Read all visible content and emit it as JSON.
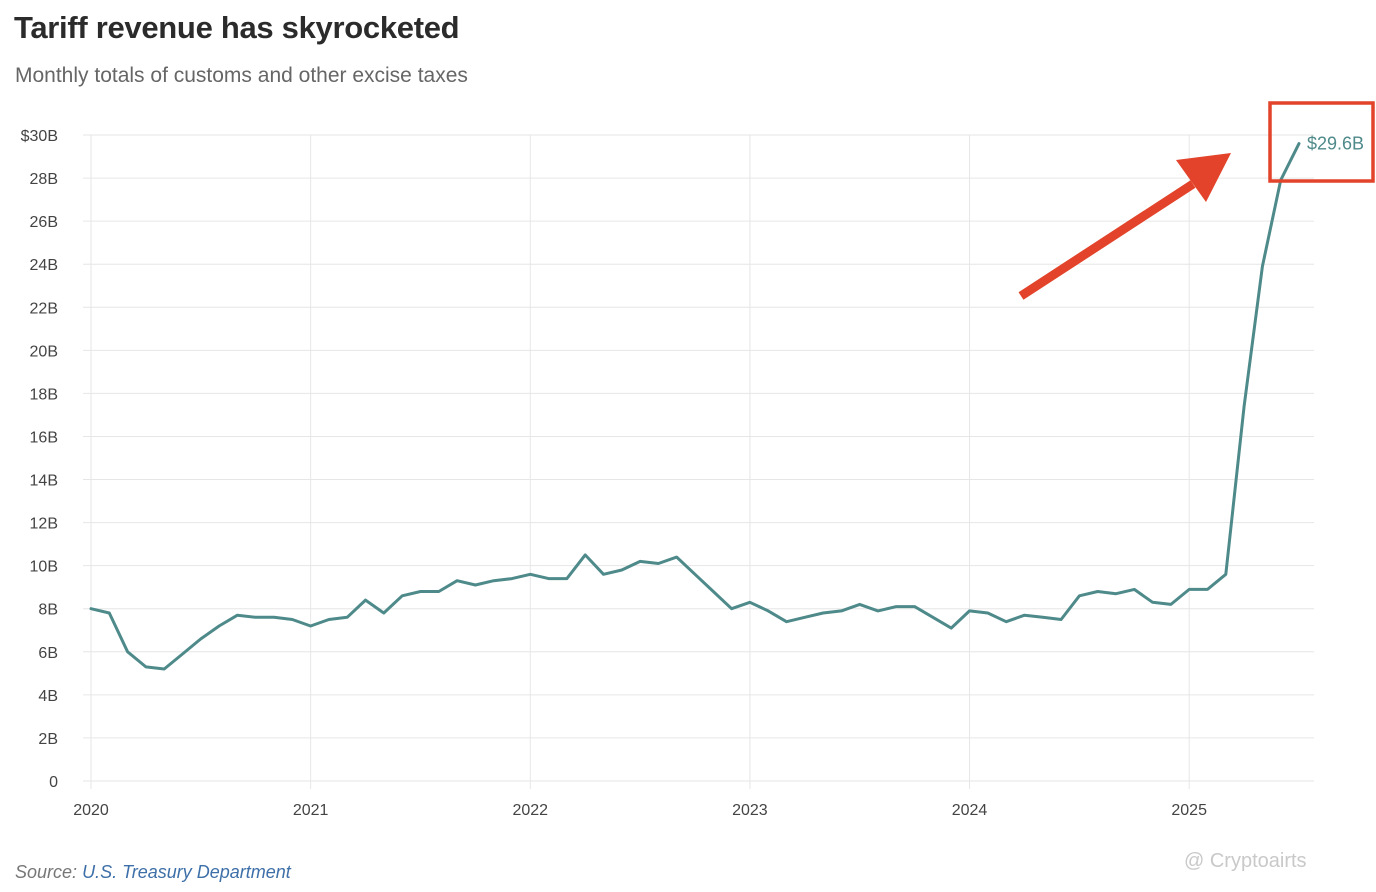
{
  "chart_data": {
    "type": "line",
    "title": "Tariff revenue has skyrocketed",
    "subtitle": "Monthly totals of customs and other excise taxes",
    "ylim": [
      0,
      30
    ],
    "ytick_labels": [
      "0",
      "2B",
      "4B",
      "6B",
      "8B",
      "10B",
      "12B",
      "14B",
      "16B",
      "18B",
      "20B",
      "22B",
      "24B",
      "26B",
      "28B",
      "$30B"
    ],
    "xlim": [
      "2020-01",
      "2025-07"
    ],
    "xtick_labels": [
      "2020",
      "2021",
      "2022",
      "2023",
      "2024",
      "2025"
    ],
    "grid": true,
    "colors": {
      "line": "#4f8a8b",
      "highlight": "#e2432a",
      "grid": "#e6e6e6"
    },
    "series": [
      {
        "x": [
          "2020-01",
          "2020-02",
          "2020-03",
          "2020-04",
          "2020-05",
          "2020-06",
          "2020-07",
          "2020-08",
          "2020-09",
          "2020-10",
          "2020-11",
          "2020-12",
          "2021-01",
          "2021-02",
          "2021-03",
          "2021-04",
          "2021-05",
          "2021-06",
          "2021-07",
          "2021-08",
          "2021-09",
          "2021-10",
          "2021-11",
          "2021-12",
          "2022-01",
          "2022-02",
          "2022-03",
          "2022-04",
          "2022-05",
          "2022-06",
          "2022-07",
          "2022-08",
          "2022-09",
          "2022-10",
          "2022-11",
          "2022-12",
          "2023-01",
          "2023-02",
          "2023-03",
          "2023-04",
          "2023-05",
          "2023-06",
          "2023-07",
          "2023-08",
          "2023-09",
          "2023-10",
          "2023-11",
          "2023-12",
          "2024-01",
          "2024-02",
          "2024-03",
          "2024-04",
          "2024-05",
          "2024-06",
          "2024-07",
          "2024-08",
          "2024-09",
          "2024-10",
          "2024-11",
          "2024-12",
          "2025-01",
          "2025-02",
          "2025-03",
          "2025-04",
          "2025-05",
          "2025-06",
          "2025-07"
        ],
        "values": [
          8.0,
          7.8,
          6.0,
          5.3,
          5.2,
          5.9,
          6.6,
          7.2,
          7.7,
          7.6,
          7.6,
          7.5,
          7.2,
          7.5,
          7.6,
          8.4,
          7.8,
          8.6,
          8.8,
          8.8,
          9.3,
          9.1,
          9.3,
          9.4,
          9.6,
          9.4,
          9.4,
          10.5,
          9.6,
          9.8,
          10.2,
          10.1,
          10.4,
          9.6,
          8.8,
          8.0,
          8.3,
          7.9,
          7.4,
          7.6,
          7.8,
          7.9,
          8.2,
          7.9,
          8.1,
          8.1,
          7.6,
          7.1,
          7.9,
          7.8,
          7.4,
          7.7,
          7.6,
          7.5,
          8.6,
          8.8,
          8.7,
          8.9,
          8.3,
          8.2,
          8.9,
          8.9,
          9.6,
          17.4,
          23.9,
          27.9,
          29.6
        ]
      }
    ],
    "annotations": {
      "last_value_label": "$29.6B"
    },
    "source_label": "Source:",
    "source_text": "U.S. Treasury Department"
  },
  "watermark": "@ Cryptoairts"
}
